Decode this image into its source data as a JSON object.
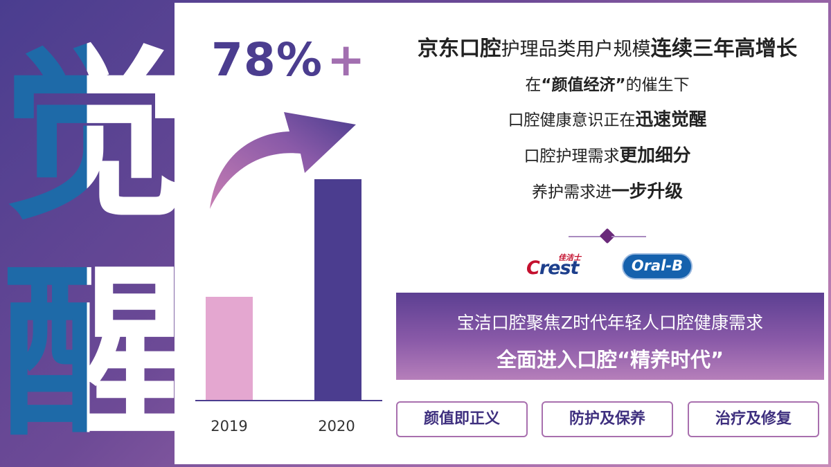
{
  "big_chars": [
    "觉",
    "醒"
  ],
  "headline": {
    "value": "78%",
    "suffix": "+"
  },
  "chart_data": {
    "type": "bar",
    "categories": [
      "2019",
      "2020"
    ],
    "values": [
      150,
      320
    ],
    "ylim": [
      0,
      330
    ],
    "colors": [
      "#e4a7d0",
      "#4b3d8f"
    ],
    "xlabel": "",
    "ylabel": "",
    "title": "",
    "legend": "none",
    "grid": false
  },
  "text_lines": {
    "l1": {
      "a": "京东口腔",
      "b": "护理品类用户规模",
      "c": "连续三年高增长"
    },
    "l2": {
      "a": "在",
      "b": "“颜值经济”",
      "c": "的催生下"
    },
    "l3": {
      "a": "口腔健康意识正在",
      "b": "迅速觉醒"
    },
    "l4": {
      "a": "口腔护理需求",
      "b": "更加细分"
    },
    "l5": {
      "a": "养护需求进",
      "b": "一步升级"
    }
  },
  "logos": {
    "crest": {
      "cn": "佳洁士",
      "en_first": "C",
      "en_rest": "rest"
    },
    "oralb": "Oral-B"
  },
  "banner": {
    "line1": "宝洁口腔聚焦Z时代年轻人口腔健康需求",
    "line2": "全面进入口腔“精养时代”"
  },
  "tags": [
    "颜值即正义",
    "防护及保养",
    "治疗及修复"
  ],
  "colors": {
    "accent": "#4b3d8f",
    "pink": "#e4a7d0",
    "blue": "#1e6aa8",
    "tag_border": "#a86fae"
  }
}
